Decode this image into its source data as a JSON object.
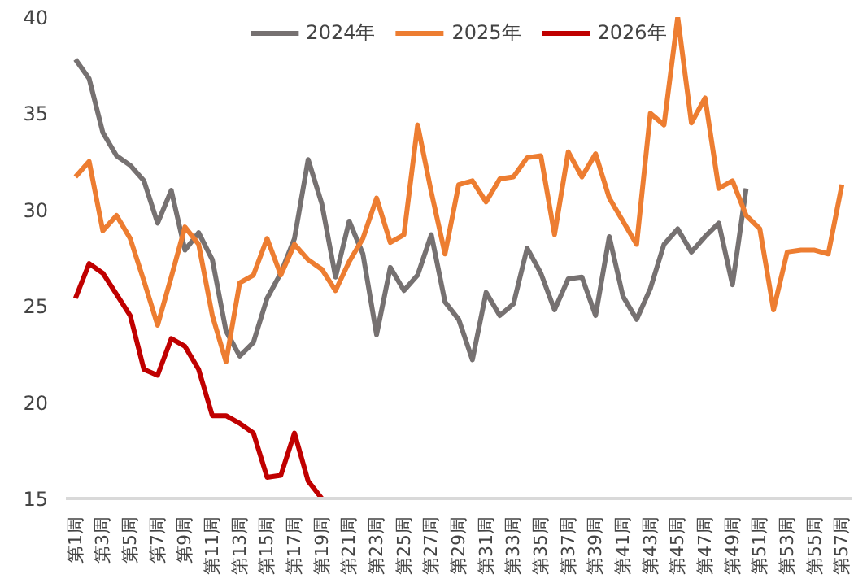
{
  "chart_data": {
    "type": "line",
    "categories": [
      "第1周",
      null,
      "第3周",
      null,
      "第5周",
      null,
      "第7周",
      null,
      "第9周",
      null,
      "第11周",
      null,
      "第13周",
      null,
      "第15周",
      null,
      "第17周",
      null,
      "第19周",
      null,
      "第21周",
      null,
      "第23周",
      null,
      "第25周",
      null,
      "第27周",
      null,
      "第29周",
      null,
      "第31周",
      null,
      "第33周",
      null,
      "第35周",
      null,
      "第37周",
      null,
      "第39周",
      null,
      "第41周",
      null,
      "第43周",
      null,
      "第45周",
      null,
      "第47周",
      null,
      "第49周",
      null,
      "第51周",
      null,
      "第53周",
      null,
      "第55周",
      null,
      "第57周"
    ],
    "series": [
      {
        "name": "2024年",
        "color": "#767171",
        "values": [
          37.8,
          36.8,
          34.0,
          32.8,
          32.3,
          31.5,
          29.3,
          31.0,
          27.9,
          28.8,
          27.4,
          23.7,
          22.4,
          23.1,
          25.4,
          26.7,
          28.5,
          32.6,
          30.3,
          26.5,
          29.4,
          27.7,
          23.5,
          27.0,
          25.8,
          26.6,
          28.7,
          25.2,
          24.3,
          22.2,
          25.7,
          24.5,
          25.1,
          28.0,
          26.7,
          24.8,
          26.4,
          26.5,
          24.5,
          28.6,
          25.5,
          24.3,
          25.9,
          28.2,
          29.0,
          27.8,
          28.6,
          29.3,
          26.1,
          31.1,
          null,
          null,
          null,
          null,
          null,
          null,
          null
        ]
      },
      {
        "name": "2025年",
        "color": "#ed7d31",
        "values": [
          31.7,
          32.5,
          28.9,
          29.7,
          28.5,
          26.3,
          24.0,
          26.5,
          29.1,
          28.2,
          24.5,
          22.1,
          26.2,
          26.6,
          28.5,
          26.6,
          28.2,
          27.4,
          26.9,
          25.8,
          27.3,
          28.5,
          30.6,
          28.3,
          28.7,
          34.4,
          30.9,
          27.7,
          31.3,
          31.5,
          30.4,
          31.6,
          31.7,
          32.7,
          32.8,
          28.7,
          33.0,
          31.7,
          32.9,
          30.6,
          29.4,
          28.2,
          35.0,
          34.4,
          40.0,
          34.5,
          35.8,
          31.1,
          31.5,
          29.7,
          29.0,
          24.8,
          27.8,
          27.9,
          27.9,
          27.7,
          31.3
        ]
      },
      {
        "name": "2026年",
        "color": "#c00000",
        "values": [
          25.4,
          27.2,
          26.7,
          25.6,
          24.5,
          21.7,
          21.4,
          23.3,
          22.9,
          21.7,
          19.3,
          19.3,
          18.9,
          18.4,
          16.1,
          16.2,
          18.4,
          15.9,
          15.0,
          null,
          null,
          null,
          null,
          null,
          null,
          null,
          null,
          null,
          null,
          null,
          null,
          null,
          null,
          null,
          null,
          null,
          null,
          null,
          null,
          null,
          null,
          null,
          null,
          null,
          null,
          null,
          null,
          null,
          null,
          null,
          null,
          null,
          null,
          null,
          null,
          null,
          null
        ]
      }
    ],
    "ylim": [
      15,
      40
    ],
    "yticks": [
      15,
      20,
      25,
      30,
      35,
      40
    ],
    "grid": false,
    "legend": "top",
    "marker": "none",
    "line_style": "solid"
  }
}
